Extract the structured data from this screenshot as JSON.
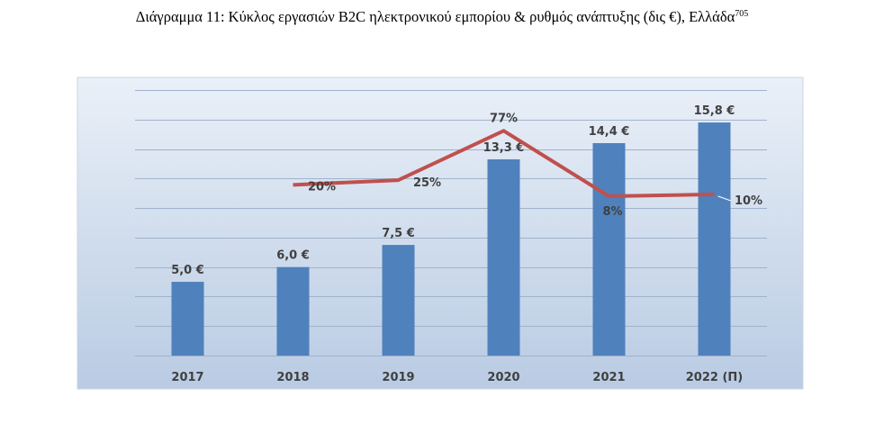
{
  "caption": {
    "text": "Διάγραμμα 11: Κύκλος εργασιών B2C ηλεκτρονικού εμπορίου & ρυθμός ανάπτυξης (δις €), Ελλάδα",
    "footnote": "705"
  },
  "colors": {
    "bar": "#4f81bd",
    "line": "#c0504d",
    "bg_top": "#eaf0f8",
    "bg_bottom": "#b9cbe3",
    "frame": "#c9d4e2",
    "grid": "#9fb3cc",
    "label": "#404040"
  },
  "chart_data": {
    "type": "bar",
    "categories": [
      "2017",
      "2018",
      "2019",
      "2020",
      "2021",
      "2022 (Π)"
    ],
    "ylim": [
      0,
      18
    ],
    "series": [
      {
        "type": "bar",
        "values": [
          5.0,
          6.0,
          7.5,
          13.3,
          14.4,
          15.8
        ],
        "labels": [
          "5,0 €",
          "6,0 €",
          "7,5 €",
          "13,3 €",
          "14,4 €",
          "15,8 €"
        ]
      },
      {
        "type": "line",
        "values": [
          null,
          20,
          25,
          77,
          8,
          10
        ],
        "labels": [
          "",
          "20%",
          "25%",
          "77%",
          "8%",
          "10%"
        ],
        "ylim": [
          -160,
          120
        ]
      }
    ],
    "legend": "none",
    "grid": true
  }
}
